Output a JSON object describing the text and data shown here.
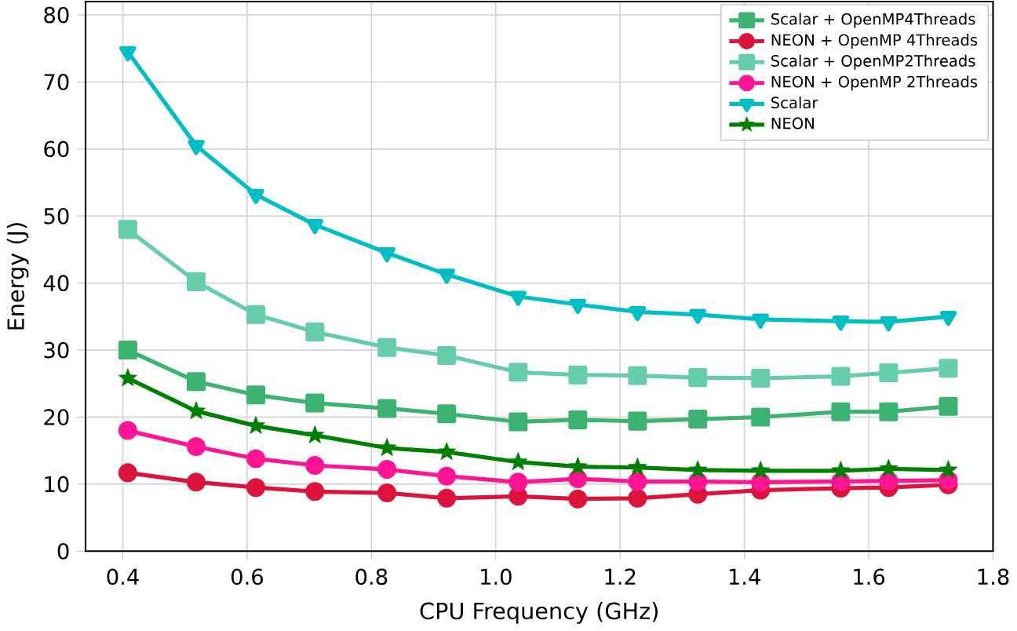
{
  "chart_data": {
    "type": "line",
    "xlabel": "CPU Frequency (GHz)",
    "ylabel": "Energy (J)",
    "x": [
      0.408,
      0.518,
      0.614,
      0.709,
      0.825,
      0.921,
      1.036,
      1.132,
      1.228,
      1.325,
      1.426,
      1.555,
      1.632,
      1.728
    ],
    "xlim": [
      0.34,
      1.8
    ],
    "xticks": [
      0.4,
      0.6,
      0.8,
      {
        "value": 1.0,
        "label": "1.0"
      },
      1.2,
      1.4,
      1.6,
      1.8
    ],
    "ylim": [
      0,
      82
    ],
    "yticks": [
      0,
      10,
      20,
      30,
      40,
      50,
      60,
      70,
      80
    ],
    "grid": true,
    "legend": "top right",
    "line_style": "solid",
    "series": [
      {
        "name": "Scalar + OpenMP4Threads",
        "color": "#3cb371",
        "marker": "square",
        "values": [
          30,
          25.3,
          23.3,
          22.1,
          21.3,
          20.5,
          19.3,
          19.6,
          19.4,
          19.7,
          20,
          20.8,
          20.8,
          21.6
        ]
      },
      {
        "name": "NEON + OpenMP 4Threads",
        "color": "#dc143c",
        "marker": "circle",
        "values": [
          11.7,
          10.3,
          9.5,
          8.9,
          8.7,
          7.9,
          8.2,
          7.8,
          7.9,
          8.5,
          9.1,
          9.4,
          9.5,
          9.9
        ]
      },
      {
        "name": "Scalar + OpenMP2Threads",
        "color": "#66cdaa",
        "marker": "square",
        "values": [
          48,
          40.2,
          35.3,
          32.7,
          30.4,
          29.2,
          26.7,
          26.3,
          26.2,
          25.9,
          25.8,
          26.1,
          26.6,
          27.3
        ]
      },
      {
        "name": "NEON + OpenMP 2Threads",
        "color": "#ff1493",
        "marker": "circle",
        "values": [
          18,
          15.6,
          13.8,
          12.8,
          12.2,
          11.2,
          10.3,
          10.8,
          10.4,
          10.4,
          10.3,
          10.4,
          10.5,
          10.6
        ]
      },
      {
        "name": "Scalar",
        "color": "#00bfc4",
        "marker": "triangle",
        "values": [
          74.5,
          60.5,
          53.2,
          48.7,
          44.5,
          41.3,
          38,
          36.8,
          35.7,
          35.3,
          34.6,
          34.3,
          34.2,
          35
        ]
      },
      {
        "name": "NEON",
        "color": "#008000",
        "marker": "star",
        "values": [
          25.8,
          20.9,
          18.7,
          17.3,
          15.4,
          14.8,
          13.3,
          12.6,
          12.5,
          12.1,
          12,
          12,
          12.3,
          12.1
        ]
      }
    ]
  }
}
